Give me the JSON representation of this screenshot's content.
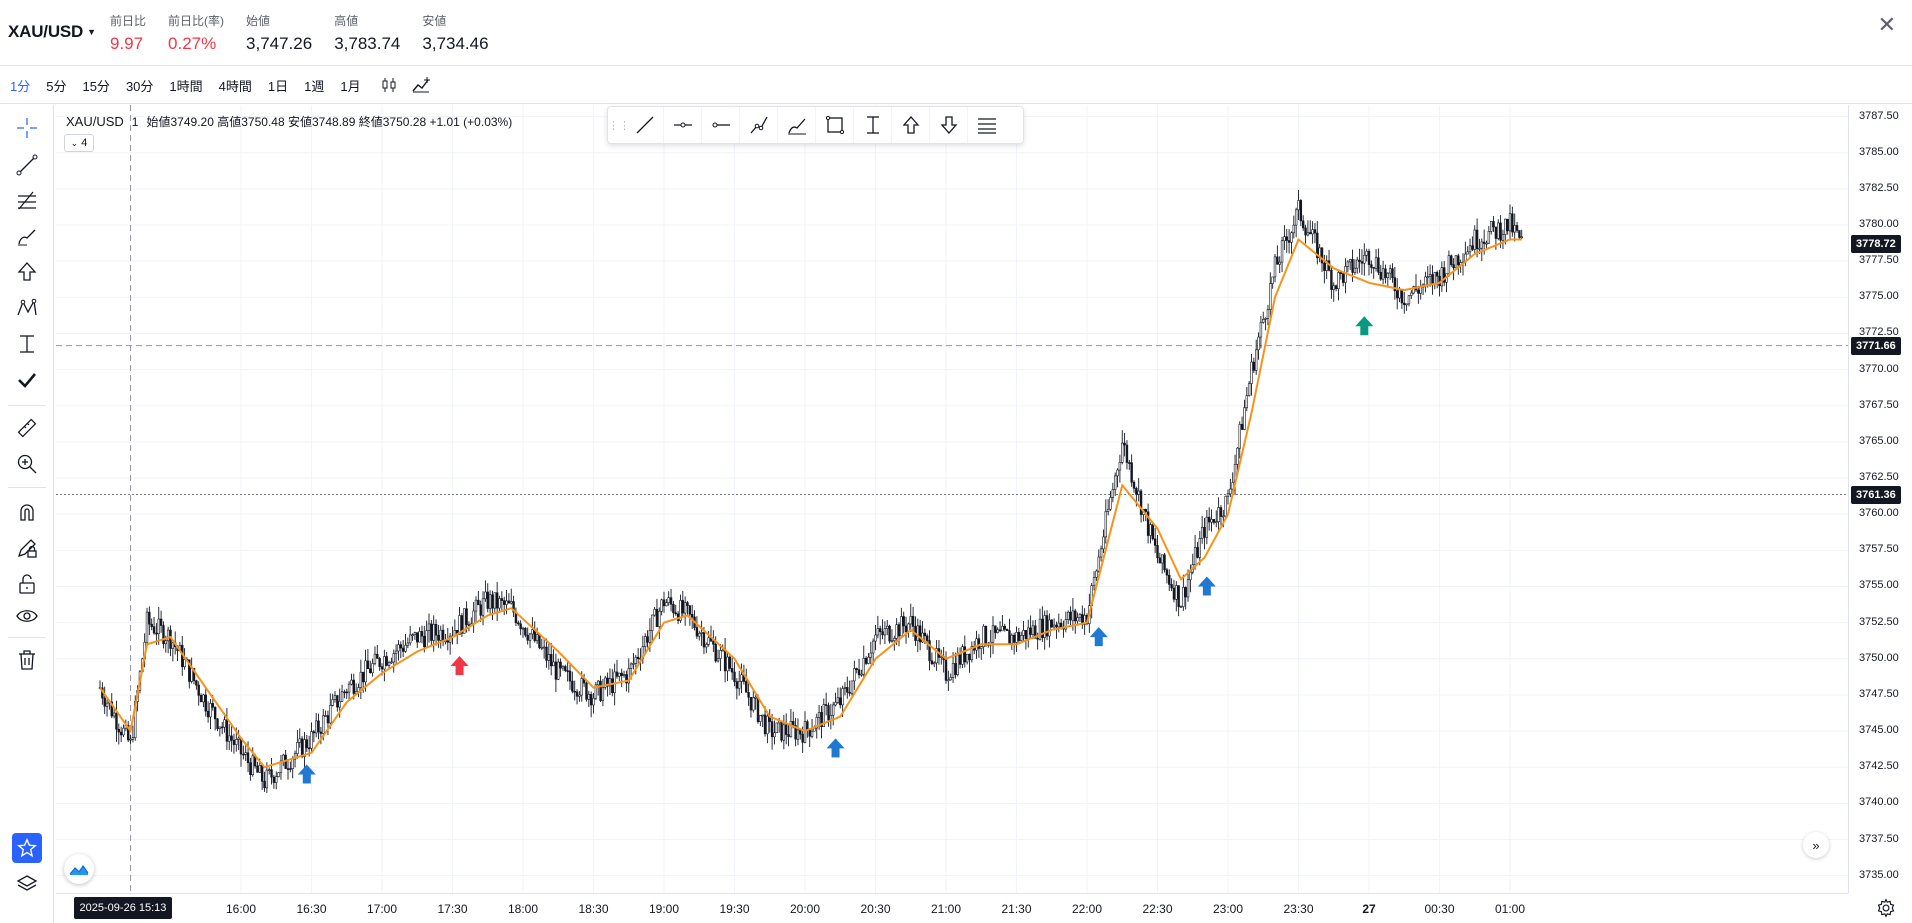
{
  "header": {
    "symbol": "XAU/USD",
    "stats": [
      {
        "label": "前日比",
        "value": "9.97",
        "color": "#f23645"
      },
      {
        "label": "前日比(率)",
        "value": "0.27%",
        "color": "#f23645"
      },
      {
        "label": "始値",
        "value": "3,747.26"
      },
      {
        "label": "高値",
        "value": "3,783.74"
      },
      {
        "label": "安値",
        "value": "3,734.46"
      }
    ],
    "close_glyph": "✕"
  },
  "timeframes": [
    "1分",
    "5分",
    "15分",
    "30分",
    "1時間",
    "4時間",
    "1日",
    "1週",
    "1月"
  ],
  "active_timeframe": "1分",
  "legend": {
    "symbol": "XAU/USD",
    "interval": "1",
    "open_label": "始値",
    "open": "3749.20",
    "high_label": "高値",
    "high": "3750.48",
    "low_label": "安値",
    "low": "3748.89",
    "close_label": "終値",
    "close": "3750.28",
    "change": "+1.01 (+0.03%)",
    "indicators_count": "4"
  },
  "chart_data": {
    "type": "line",
    "series": [
      {
        "name": "price",
        "color": "#131722",
        "x": [
          "15:00",
          "15:13",
          "15:20",
          "15:30",
          "15:45",
          "16:00",
          "16:10",
          "16:30",
          "16:45",
          "17:00",
          "17:15",
          "17:30",
          "17:45",
          "17:55",
          "18:15",
          "18:30",
          "18:45",
          "19:00",
          "19:10",
          "19:30",
          "19:45",
          "20:00",
          "20:15",
          "20:30",
          "20:45",
          "21:00",
          "21:15",
          "21:30",
          "21:45",
          "22:00",
          "22:15",
          "22:30",
          "22:40",
          "22:50",
          "23:00",
          "23:10",
          "23:20",
          "23:30",
          "23:45",
          "00:00",
          "00:15",
          "00:30",
          "00:45",
          "01:00",
          "01:05"
        ],
        "values": [
          3748.0,
          3744.0,
          3752.5,
          3751.5,
          3747.0,
          3743.5,
          3741.5,
          3744.5,
          3748.0,
          3750.0,
          3751.5,
          3752.0,
          3754.0,
          3753.5,
          3749.0,
          3747.5,
          3749.0,
          3754.0,
          3753.0,
          3749.0,
          3745.0,
          3745.0,
          3747.0,
          3751.5,
          3752.5,
          3749.0,
          3751.5,
          3751.5,
          3752.5,
          3753.0,
          3765.0,
          3757.0,
          3754.0,
          3759.0,
          3761.0,
          3770.0,
          3777.0,
          3781.0,
          3776.0,
          3778.0,
          3775.0,
          3776.5,
          3779.0,
          3780.0,
          3778.72
        ]
      },
      {
        "name": "MA",
        "color": "#f7931a",
        "x": [
          "15:00",
          "15:13",
          "15:20",
          "15:30",
          "15:45",
          "16:00",
          "16:10",
          "16:30",
          "16:45",
          "17:00",
          "17:15",
          "17:30",
          "17:45",
          "17:55",
          "18:15",
          "18:30",
          "18:45",
          "19:00",
          "19:10",
          "19:30",
          "19:45",
          "20:00",
          "20:15",
          "20:30",
          "20:45",
          "21:00",
          "21:15",
          "21:30",
          "21:45",
          "22:00",
          "22:15",
          "22:30",
          "22:40",
          "22:50",
          "23:00",
          "23:10",
          "23:20",
          "23:30",
          "23:45",
          "00:00",
          "00:15",
          "00:30",
          "00:45",
          "01:00",
          "01:05"
        ],
        "values": [
          3748.0,
          3745.0,
          3751.0,
          3751.5,
          3748.0,
          3744.5,
          3742.5,
          3743.5,
          3747.0,
          3749.0,
          3750.5,
          3751.5,
          3753.0,
          3753.5,
          3750.5,
          3748.0,
          3748.5,
          3752.5,
          3753.0,
          3750.0,
          3746.0,
          3745.0,
          3746.0,
          3750.0,
          3752.0,
          3750.0,
          3751.0,
          3751.0,
          3752.0,
          3752.5,
          3762.0,
          3759.0,
          3755.5,
          3757.0,
          3760.0,
          3767.0,
          3775.0,
          3779.0,
          3777.0,
          3776.0,
          3775.5,
          3776.0,
          3778.0,
          3779.0,
          3779.0
        ]
      }
    ],
    "ylim": [
      3733.8,
      3788.3
    ],
    "yticks": [
      "3787.50",
      "3785.00",
      "3782.50",
      "3780.00",
      "3777.50",
      "3775.00",
      "3772.50",
      "3770.00",
      "3767.50",
      "3765.00",
      "3762.50",
      "3760.00",
      "3757.50",
      "3755.00",
      "3752.50",
      "3750.00",
      "3747.50",
      "3745.00",
      "3742.50",
      "3740.00",
      "3737.50",
      "3735.00"
    ],
    "xticks": [
      "16:00",
      "16:30",
      "17:00",
      "17:30",
      "18:00",
      "18:30",
      "19:00",
      "19:30",
      "20:00",
      "20:30",
      "21:00",
      "21:30",
      "22:00",
      "22:30",
      "23:00",
      "23:30",
      "27",
      "00:30",
      "01:00"
    ],
    "price_labels": [
      "3778.72",
      "3771.66",
      "3761.36"
    ],
    "crosshair_label": "2025-09-26   15:13",
    "markers": [
      {
        "x": "16:28",
        "y": 3742.0,
        "dir": "up",
        "color": "#1f78d1"
      },
      {
        "x": "17:33",
        "y": 3749.5,
        "dir": "up",
        "color": "#f23645"
      },
      {
        "x": "20:13",
        "y": 3743.8,
        "dir": "up",
        "color": "#1f78d1"
      },
      {
        "x": "22:05",
        "y": 3751.5,
        "dir": "up",
        "color": "#1f78d1"
      },
      {
        "x": "22:51",
        "y": 3755.0,
        "dir": "up",
        "color": "#1f78d1"
      },
      {
        "x": "23:58",
        "y": 3773.0,
        "dir": "up",
        "color": "#089981"
      }
    ],
    "grid": true
  },
  "icons": {
    "left_tools": [
      "crosshair-icon",
      "trendline-icon",
      "fib-icon",
      "brush-icon",
      "arrow-up-icon",
      "pattern-icon",
      "measure-text-icon",
      "check-icon",
      "ruler-icon",
      "zoom-in-icon",
      "magnet-icon",
      "lock-pencil-icon",
      "unlock-icon",
      "eye-icon",
      "trash-icon",
      "star-icon",
      "layers-icon"
    ],
    "floating_tools": [
      "line-icon",
      "horizontal-ray-icon",
      "horizontal-line-icon",
      "path-icon",
      "brush-icon",
      "rectangle-icon",
      "text-cursor-icon",
      "arrow-up-icon",
      "arrow-down-icon",
      "list-icon"
    ]
  }
}
